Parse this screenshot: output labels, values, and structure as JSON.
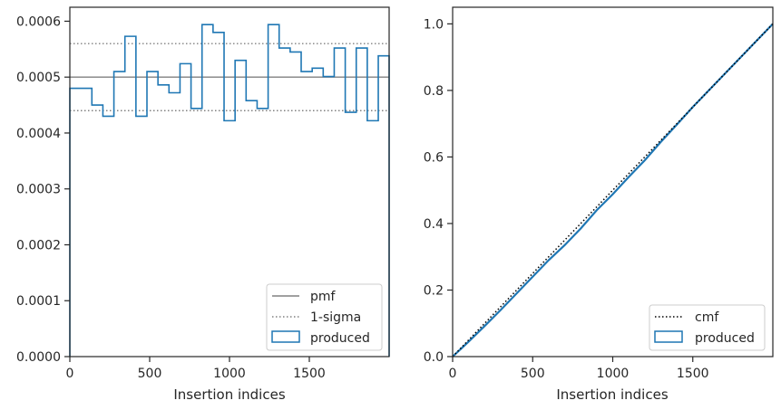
{
  "colors": {
    "produced": "#1f77b4",
    "pmf": "#808080",
    "sigma": "#808080",
    "cmf": "#000000",
    "axes": "#262626"
  },
  "chart_data": [
    {
      "type": "step-histogram",
      "xlabel": "Insertion indices",
      "ylabel": "",
      "xlim": [
        0,
        2000
      ],
      "ylim": [
        0,
        0.000625
      ],
      "x_ticks": [
        0,
        500,
        1000,
        1500
      ],
      "x_tick_labels": [
        "0",
        "500",
        "1000",
        "1500"
      ],
      "y_ticks": [
        0,
        0.0001,
        0.0002,
        0.0003,
        0.0004,
        0.0005,
        0.0006
      ],
      "y_tick_labels": [
        "0.0000",
        "0.0001",
        "0.0002",
        "0.0003",
        "0.0004",
        "0.0005",
        "0.0006"
      ],
      "bin_width": 69,
      "bin_edges": [
        0,
        69,
        138,
        207,
        276,
        345,
        414,
        483,
        552,
        621,
        690,
        759,
        828,
        897,
        966,
        1035,
        1104,
        1173,
        1242,
        1311,
        1380,
        1449,
        1518,
        1587,
        1656,
        1725,
        1794,
        1863,
        1932,
        2001
      ],
      "produced": [
        0.00048,
        0.00048,
        0.00045,
        0.00043,
        0.00051,
        0.000573,
        0.00043,
        0.00051,
        0.000486,
        0.000472,
        0.000524,
        0.000444,
        0.000594,
        0.00058,
        0.000422,
        0.00053,
        0.000458,
        0.000444,
        0.000594,
        0.000552,
        0.000545,
        0.00051,
        0.000516,
        0.000501,
        0.000552,
        0.000437,
        0.000552,
        0.000422,
        0.000538
      ],
      "pmf": 0.0005,
      "sigma_upper": 0.00056,
      "sigma_lower": 0.00044,
      "legend": [
        "pmf",
        "1-sigma",
        "produced"
      ],
      "legend_position": "lower right",
      "grid": false
    },
    {
      "type": "line",
      "xlabel": "Insertion indices",
      "ylabel": "",
      "xlim": [
        0,
        2000
      ],
      "ylim": [
        0,
        1.05
      ],
      "x_ticks": [
        0,
        500,
        1000,
        1500
      ],
      "x_tick_labels": [
        "0",
        "500",
        "1000",
        "1500"
      ],
      "y_ticks": [
        0,
        0.2,
        0.4,
        0.6,
        0.8,
        1.0
      ],
      "y_tick_labels": [
        "0.0",
        "0.2",
        "0.4",
        "0.6",
        "0.8",
        "1.0"
      ],
      "cmf": {
        "x": [
          0,
          2000
        ],
        "y": [
          0,
          1.0
        ]
      },
      "produced": {
        "x": [
          0,
          100,
          200,
          300,
          400,
          500,
          600,
          700,
          800,
          900,
          1000,
          1100,
          1200,
          1300,
          1400,
          1500,
          1600,
          1700,
          1800,
          1900,
          2000
        ],
        "y": [
          0,
          0.045,
          0.092,
          0.14,
          0.19,
          0.24,
          0.29,
          0.335,
          0.385,
          0.44,
          0.488,
          0.54,
          0.59,
          0.645,
          0.697,
          0.75,
          0.8,
          0.85,
          0.9,
          0.95,
          1.0
        ]
      },
      "legend": [
        "cmf",
        "produced"
      ],
      "legend_position": "lower right",
      "grid": false
    }
  ]
}
